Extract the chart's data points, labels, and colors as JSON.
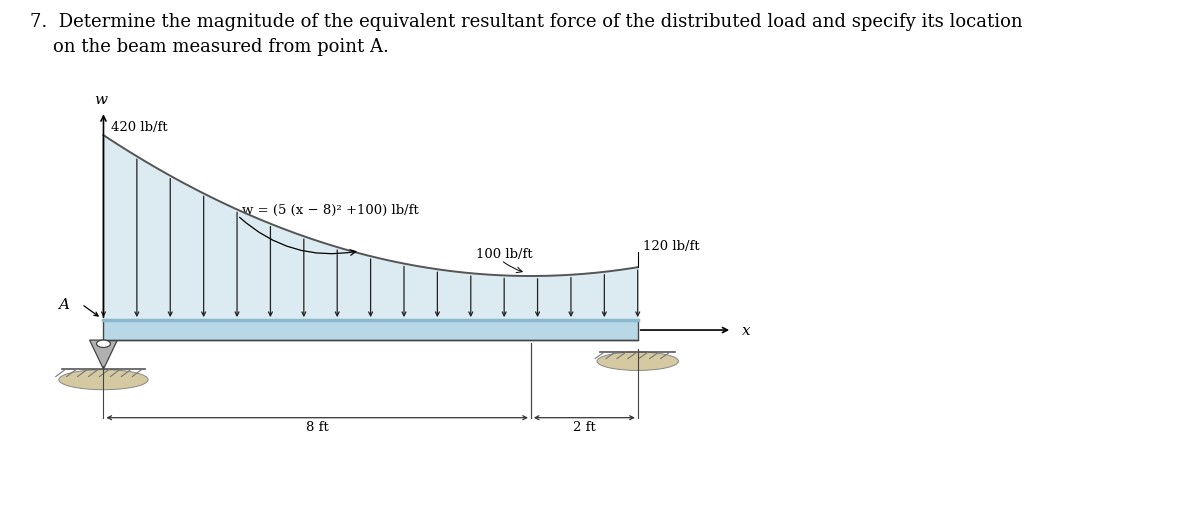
{
  "title_line1": "7.  Determine the magnitude of the equivalent resultant force of the distributed load and specify its location",
  "title_line2": "    on the beam measured from point A.",
  "bg_color": "#ffffff",
  "beam_color": "#b8d8e8",
  "beam_edge_color": "#444444",
  "beam_highlight_color": "#8ab8cc",
  "arrow_color": "#222222",
  "curve_color": "#555555",
  "load_label_420": "420 lb/ft",
  "load_label_100": "100 lb/ft",
  "load_label_120": "120 lb/ft",
  "formula_label": "w = (5 (x − 8)² +100) lb/ft",
  "dim_8ft": "8 ft",
  "dim_2ft": "2 ft",
  "label_A": "A",
  "label_w": "w",
  "label_x": "x",
  "font_size_title": 13,
  "font_size_labels": 9.5,
  "font_size_dim": 9.5,
  "font_size_axis": 11
}
